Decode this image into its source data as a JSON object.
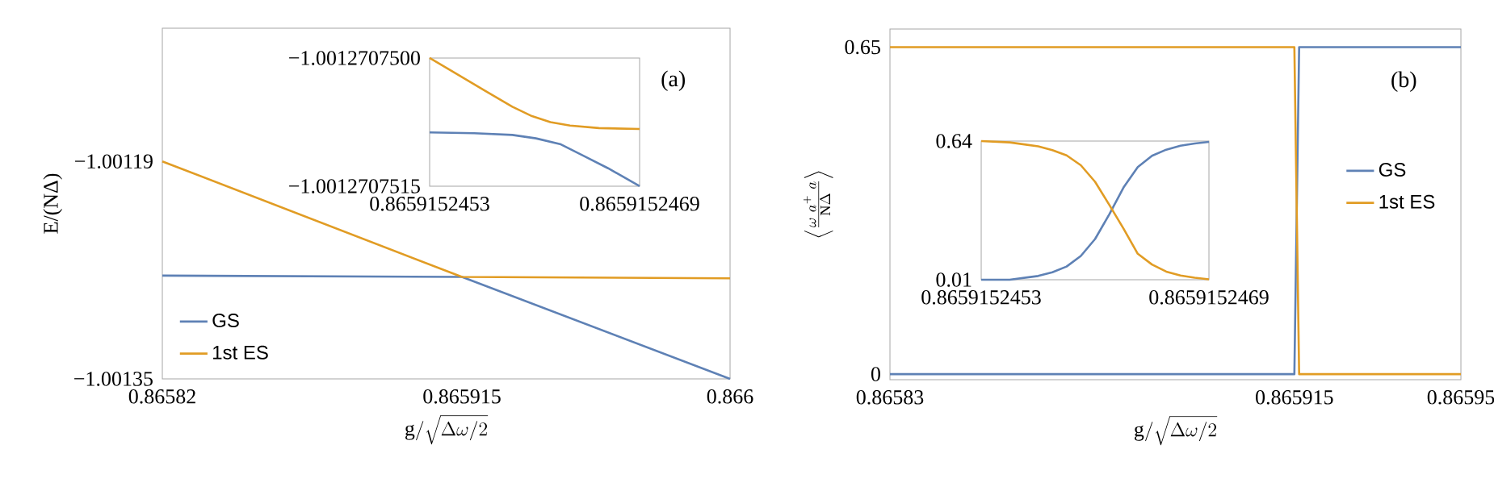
{
  "chart_data": [
    {
      "type": "line",
      "xlabel": "\\mathrm{g}/\\sqrt{\\Delta\\omega/2}",
      "ylabel": "E/(NΔ)",
      "xlim": [
        0.86582,
        0.866
      ],
      "ylim": [
        -1.00135,
        -1.001092
      ],
      "xticks": [
        0.86582,
        0.865915,
        0.866
      ],
      "yticks": [
        {
          "value": -1.00135,
          "label": "−1.00135"
        },
        {
          "value": -1.00119,
          "label": "−1.00119"
        }
      ],
      "legend": "bottom left",
      "annotations": [
        "(a)"
      ],
      "series": [
        {
          "name": "GS",
          "color": "#5e81b5",
          "x": [
            0.86582,
            0.865915,
            0.866
          ],
          "values": [
            -1.001274,
            -1.001275,
            -1.00135
          ]
        },
        {
          "name": "1st ES",
          "color": "#e19c24",
          "x": [
            0.86582,
            0.865915,
            0.866
          ],
          "values": [
            -1.00119,
            -1.001275,
            -1.001276
          ]
        }
      ]
    },
    {
      "type": "line",
      "xlim": [
        0.8659152453,
        0.8659152469
      ],
      "ylim": [
        -1.0012707515,
        -1.00127075
      ],
      "xticks": [
        0.8659152453,
        0.8659152469
      ],
      "yticks": [
        {
          "value": -1.0012707515,
          "label": "−1.0012707515"
        },
        {
          "value": -1.00127075,
          "label": "−1.0012707500"
        }
      ],
      "series": [
        {
          "color": "#5e81b5",
          "x": [
            0.8659152453,
            0.86591524564,
            0.86591524593,
            0.86591524611,
            0.8659152463,
            0.86591524648,
            0.86591524666,
            0.8659152469
          ],
          "values": [
            -1.00127075087,
            -1.00127075088,
            -1.0012707509,
            -1.00127075094,
            -1.00127075101,
            -1.00127075115,
            -1.00127075129,
            -1.0012707515
          ]
        },
        {
          "color": "#e19c24",
          "x": [
            0.8659152453,
            0.8659152455,
            0.86591524572,
            0.86591524593,
            0.86591524608,
            0.86591524622,
            0.86591524637,
            0.86591524659,
            0.8659152469
          ],
          "values": [
            -1.00127075,
            -1.00127075018,
            -1.00127075038,
            -1.00127075057,
            -1.00127075068,
            -1.00127075075,
            -1.00127075079,
            -1.00127075082,
            -1.00127075083
          ]
        }
      ]
    },
    {
      "type": "line",
      "xlabel": "\\mathrm{g}/\\sqrt{\\Delta\\omega/2}",
      "ylabel": "\\left\\langle\\frac{\\omega\\ a^{+}\\ a}{\\mathrm{N}\\Delta}\\right\\rangle",
      "xlim": [
        0.86583,
        0.86595
      ],
      "ylim": [
        -0.011,
        0.686
      ],
      "xticks": [
        0.86583,
        0.865915,
        0.86595
      ],
      "yticks": [
        0,
        0.65
      ],
      "legend": "right",
      "annotations": [
        "(b)"
      ],
      "series": [
        {
          "name": "GS",
          "color": "#5e81b5",
          "x": [
            0.86583,
            0.865915,
            0.865916,
            0.86595
          ],
          "values": [
            0,
            0,
            0.65,
            0.65
          ]
        },
        {
          "name": "1st ES",
          "color": "#e19c24",
          "x": [
            0.86583,
            0.865915,
            0.865916,
            0.86595
          ],
          "values": [
            0.65,
            0.65,
            0,
            0
          ]
        }
      ]
    },
    {
      "type": "line",
      "xlim": [
        0.8659152453,
        0.8659152469
      ],
      "ylim": [
        0.01,
        0.64
      ],
      "xticks": [
        0.8659152453,
        0.8659152469
      ],
      "yticks": [
        0.01,
        0.64
      ],
      "series": [
        {
          "color": "#5e81b5",
          "x": [
            0.8659152453,
            0.8659152455,
            0.8659152457,
            0.8659152458,
            0.8659152459,
            0.865915246,
            0.8659152461,
            0.8659152462,
            0.8659152463,
            0.8659152464,
            0.8659152465,
            0.8659152466,
            0.8659152467,
            0.8659152468,
            0.8659152469
          ],
          "values": [
            0.01,
            0.01,
            0.027,
            0.044,
            0.07,
            0.118,
            0.195,
            0.307,
            0.429,
            0.522,
            0.573,
            0.601,
            0.619,
            0.629,
            0.636
          ]
        },
        {
          "color": "#e19c24",
          "x": [
            0.8659152453,
            0.8659152455,
            0.8659152457,
            0.8659152458,
            0.8659152459,
            0.865915246,
            0.8659152461,
            0.8659152462,
            0.8659152463,
            0.8659152464,
            0.8659152465,
            0.8659152466,
            0.8659152467,
            0.8659152468,
            0.8659152469
          ],
          "values": [
            0.64,
            0.634,
            0.616,
            0.599,
            0.575,
            0.53,
            0.455,
            0.35,
            0.242,
            0.128,
            0.079,
            0.047,
            0.029,
            0.019,
            0.012
          ]
        }
      ]
    }
  ]
}
